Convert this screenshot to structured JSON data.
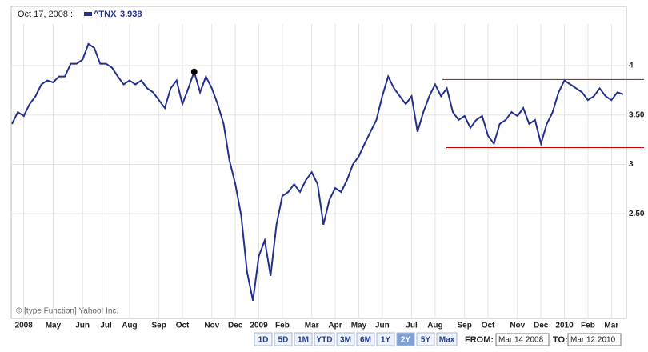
{
  "chart_data": {
    "type": "line",
    "header_date": "Oct 17, 2008 :",
    "hover_index": 31,
    "copyright": "© [type Function] Yahoo! Inc.",
    "categories": [
      null,
      null,
      "2008",
      null,
      null,
      null,
      null,
      "May",
      null,
      null,
      null,
      null,
      "Jun",
      null,
      null,
      null,
      "Jul",
      null,
      null,
      null,
      "Aug",
      null,
      null,
      null,
      null,
      "Sep",
      null,
      null,
      null,
      "Oct",
      null,
      null,
      null,
      null,
      "Nov",
      null,
      null,
      null,
      "Dec",
      null,
      null,
      null,
      "2009",
      null,
      null,
      null,
      "Feb",
      null,
      null,
      null,
      null,
      "Mar",
      null,
      null,
      null,
      "Apr",
      null,
      null,
      null,
      "May",
      null,
      null,
      null,
      "Jun",
      null,
      null,
      null,
      null,
      "Jul",
      null,
      null,
      null,
      "Aug",
      null,
      null,
      null,
      null,
      "Sep",
      null,
      null,
      null,
      "Oct",
      null,
      null,
      null,
      null,
      "Nov",
      null,
      null,
      null,
      "Dec",
      null,
      null,
      null,
      "2010",
      null,
      null,
      null,
      "Feb",
      null,
      null,
      null,
      "Mar",
      null,
      null
    ],
    "series": [
      {
        "name": "^TNX",
        "color": "#23318c",
        "values": [
          3.41,
          3.53,
          3.49,
          3.61,
          3.69,
          3.81,
          3.85,
          3.83,
          3.89,
          3.89,
          4.02,
          4.02,
          4.06,
          4.22,
          4.18,
          4.02,
          4.02,
          3.98,
          3.89,
          3.81,
          3.85,
          3.81,
          3.85,
          3.77,
          3.73,
          3.65,
          3.57,
          3.77,
          3.85,
          3.61,
          3.77,
          3.938,
          3.73,
          3.89,
          3.77,
          3.61,
          3.41,
          3.04,
          2.8,
          2.48,
          1.91,
          1.62,
          2.07,
          2.23,
          1.87,
          2.39,
          2.68,
          2.72,
          2.8,
          2.72,
          2.84,
          2.92,
          2.8,
          2.39,
          2.64,
          2.76,
          2.72,
          2.84,
          3.0,
          3.08,
          3.21,
          3.33,
          3.45,
          3.69,
          3.89,
          3.77,
          3.69,
          3.61,
          3.69,
          3.33,
          3.53,
          3.69,
          3.81,
          3.69,
          3.77,
          3.53,
          3.45,
          3.49,
          3.37,
          3.45,
          3.49,
          3.29,
          3.21,
          3.41,
          3.45,
          3.53,
          3.49,
          3.57,
          3.41,
          3.45,
          3.21,
          3.41,
          3.53,
          3.73,
          3.85,
          3.81,
          3.77,
          3.73,
          3.65,
          3.69,
          3.77,
          3.69,
          3.65,
          3.73,
          3.71
        ]
      }
    ],
    "annotations": [
      {
        "value": 3.86,
        "color": "#cc0000"
      },
      {
        "value": 3.17,
        "color": "#cc0000"
      }
    ],
    "ylim": [
      1.44,
      4.6
    ],
    "yticks": [
      {
        "value": 2.5,
        "label": "2.50"
      },
      3,
      {
        "value": 3.5,
        "label": "3.50"
      },
      4
    ],
    "grid": true
  },
  "controls": {
    "range_buttons": [
      "1D",
      "5D",
      "1M",
      "YTD",
      "3M",
      "6M",
      "1Y",
      "2Y",
      "5Y",
      "Max"
    ],
    "selected": "2Y",
    "from_label": "FROM:",
    "from": "Mar 14 2008",
    "to_label": "TO:",
    "to": "Mar 12 2010"
  }
}
